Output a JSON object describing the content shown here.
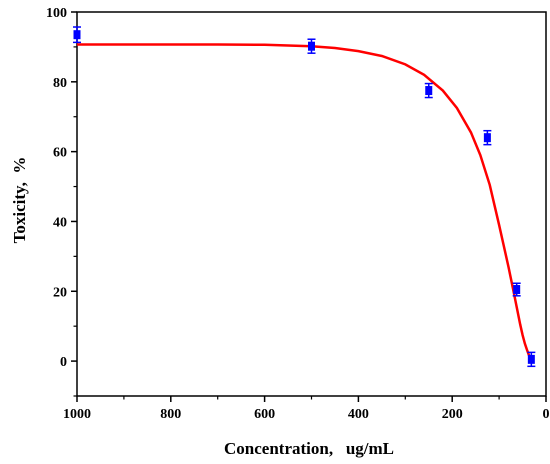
{
  "chart_data": {
    "type": "scatter",
    "xlabel": "Concentration,   ug/mL",
    "ylabel": "Toxicity,  %",
    "xlim": [
      1000,
      0
    ],
    "x_reversed": true,
    "ylim": [
      -10,
      100
    ],
    "x_ticks": [
      "1000",
      "800",
      "600",
      "400",
      "200",
      "0"
    ],
    "y_ticks": [
      "0",
      "20",
      "40",
      "60",
      "80",
      "100"
    ],
    "grid": false,
    "series": [
      {
        "kind": "points",
        "color": "#0000ff",
        "points": [
          {
            "x": 1000,
            "y": 93.5,
            "err": 2.2
          },
          {
            "x": 500,
            "y": 90.2,
            "err": 2.0
          },
          {
            "x": 250,
            "y": 77.5,
            "err": 2.0
          },
          {
            "x": 125,
            "y": 64.0,
            "err": 2.0
          },
          {
            "x": 62.5,
            "y": 20.5,
            "err": 1.8
          },
          {
            "x": 31.25,
            "y": 0.5,
            "err": 2.0
          }
        ]
      },
      {
        "kind": "fit-line",
        "color": "#ff0000",
        "x": [
          1000,
          900,
          800,
          700,
          600,
          500,
          450,
          400,
          350,
          300,
          260,
          220,
          190,
          160,
          140,
          120,
          100,
          90,
          80,
          70,
          62.5,
          55,
          50,
          45,
          40,
          35,
          31.25
        ],
        "y": [
          90.7,
          90.7,
          90.7,
          90.7,
          90.6,
          90.2,
          89.7,
          88.8,
          87.4,
          85.0,
          82.0,
          77.5,
          72.5,
          65.5,
          59.0,
          50.5,
          39.0,
          33.0,
          27.0,
          20.5,
          15.5,
          10.5,
          7.5,
          5.0,
          3.0,
          1.2,
          0
        ]
      }
    ]
  }
}
